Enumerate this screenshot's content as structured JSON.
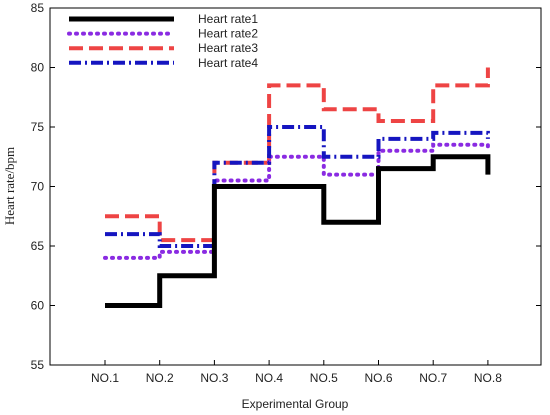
{
  "chart_data": {
    "type": "line",
    "step": true,
    "xlabel": "Experimental Group",
    "ylabel": "Heart rate/bpm",
    "categories": [
      "NO.1",
      "NO.2",
      "NO.3",
      "NO.4",
      "NO.5",
      "NO.6",
      "NO.7",
      "NO.8"
    ],
    "yticks": [
      "55",
      "60",
      "65",
      "70",
      "75",
      "80",
      "85"
    ],
    "ylim": [
      55,
      85
    ],
    "legend_position": "top-left",
    "grid": false,
    "series": [
      {
        "name": "Heart rate1",
        "color": "#000000",
        "style": "solid",
        "values": [
          60,
          62.5,
          70,
          70,
          67,
          71.5,
          72.5,
          71
        ]
      },
      {
        "name": "Heart rate2",
        "color": "#8a2be2",
        "style": "dotted",
        "values": [
          64,
          64.5,
          70.5,
          72.5,
          71,
          73,
          73.5,
          73
        ]
      },
      {
        "name": "Heart rate3",
        "color": "#ee4444",
        "style": "dashed",
        "values": [
          67.5,
          65.5,
          72,
          78.5,
          76.5,
          75.5,
          78.5,
          80
        ]
      },
      {
        "name": "Heart rate4",
        "color": "#1515c0",
        "style": "dashdot",
        "values": [
          66,
          65,
          72,
          75,
          72.5,
          74,
          74.5,
          74
        ]
      }
    ]
  }
}
